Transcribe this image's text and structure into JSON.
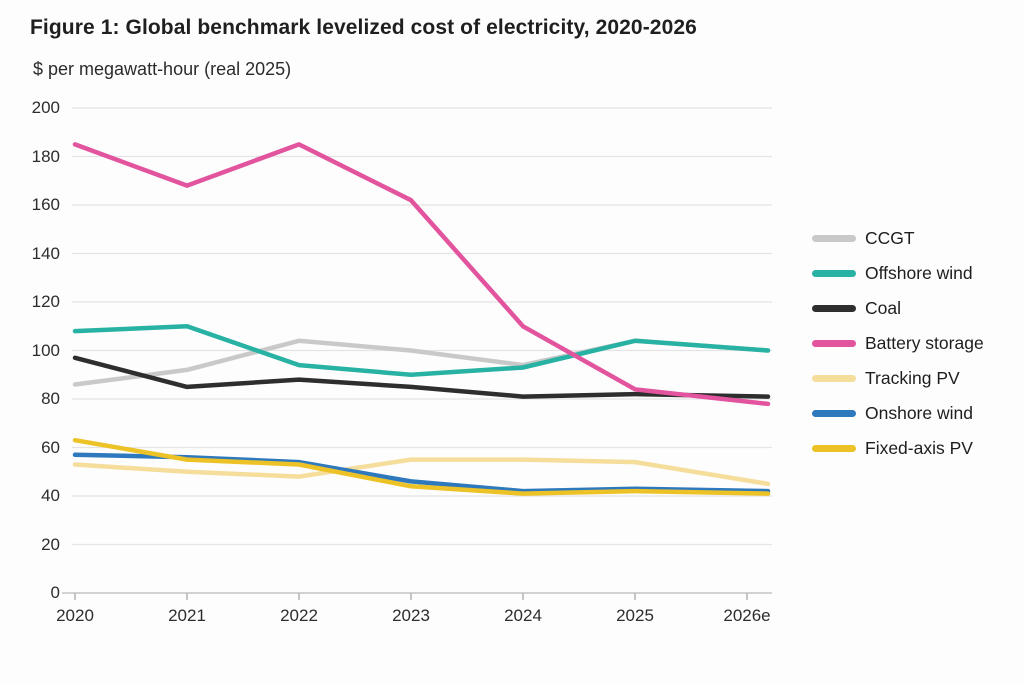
{
  "figure": {
    "title": "Figure 1: Global benchmark levelized cost of electricity, 2020-2026",
    "subtitle": "$ per megawatt-hour (real 2025)"
  },
  "chart_data": {
    "type": "line",
    "title": "Figure 1: Global benchmark levelized cost of electricity, 2020-2026",
    "ylabel": "$ per megawatt-hour (real 2025)",
    "xlabel": "",
    "categories": [
      "2020",
      "2021",
      "2022",
      "2023",
      "2024",
      "2025",
      "2026e"
    ],
    "series": [
      {
        "name": "CCGT",
        "color": "#c9c9c9",
        "values": [
          86,
          92,
          104,
          100,
          94,
          104,
          100
        ]
      },
      {
        "name": "Offshore wind",
        "color": "#28b2a4",
        "values": [
          108,
          110,
          94,
          90,
          93,
          104,
          100
        ]
      },
      {
        "name": "Coal",
        "color": "#2e2e2e",
        "values": [
          97,
          85,
          88,
          85,
          81,
          82,
          81
        ]
      },
      {
        "name": "Battery storage",
        "color": "#e2549e",
        "values": [
          185,
          168,
          185,
          162,
          110,
          84,
          78
        ]
      },
      {
        "name": "Tracking PV",
        "color": "#f5dd9b",
        "values": [
          53,
          50,
          48,
          55,
          55,
          54,
          45
        ]
      },
      {
        "name": "Onshore wind",
        "color": "#2e79bd",
        "values": [
          57,
          56,
          54,
          46,
          42,
          43,
          42
        ]
      },
      {
        "name": "Fixed-axis PV",
        "color": "#edc226",
        "values": [
          63,
          55,
          53,
          44,
          41,
          42,
          41
        ]
      }
    ],
    "ylim": [
      0,
      200
    ],
    "y_ticks": [
      0,
      20,
      40,
      60,
      80,
      100,
      120,
      140,
      160,
      180,
      200
    ],
    "grid": true,
    "legend_position": "right",
    "note": "CCGT line is drawn first and lies behind the Offshore wind line from 2024 onward"
  },
  "colors": {
    "background": "#fdfdfd",
    "gridline": "#e4e4e4",
    "axis_line": "#c6c6c6",
    "tick_mark": "#b3b3b3",
    "tick_label": "#2d2d2d",
    "title_text": "#1f1f1f"
  }
}
